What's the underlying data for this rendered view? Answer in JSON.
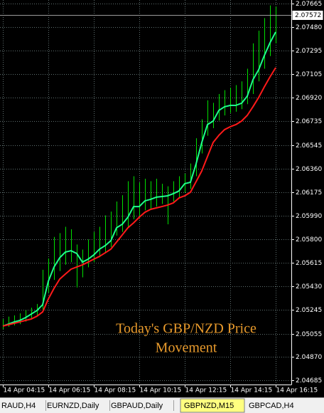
{
  "chart_data": {
    "type": "price",
    "categories": [
      "14 Apr 04:15",
      null,
      null,
      null,
      null,
      null,
      null,
      null,
      "14 Apr 06:15",
      null,
      null,
      null,
      null,
      null,
      null,
      null,
      "14 Apr 08:15",
      null,
      null,
      null,
      null,
      null,
      null,
      null,
      "14 Apr 10:15",
      null,
      null,
      null,
      null,
      null,
      null,
      null,
      "14 Apr 12:15",
      null,
      null,
      null,
      null,
      null,
      null,
      null,
      "14 Apr 14:15",
      null,
      null,
      null,
      null,
      null,
      null,
      null,
      "14 Apr 16:15"
    ],
    "bars": {
      "color": "#00e000",
      "high": [
        2.0517,
        2.0519,
        2.052,
        2.05215,
        2.0524,
        2.0526,
        2.0529,
        2.0556,
        2.0565,
        2.0582,
        2.0585,
        2.059,
        2.0588,
        2.0576,
        2.0572,
        2.058,
        2.0586,
        2.059,
        2.0599,
        2.0602,
        2.061,
        2.0615,
        2.0626,
        2.063,
        2.0625,
        2.0628,
        2.0626,
        2.0628,
        2.0624,
        2.0622,
        2.0626,
        2.063,
        2.0632,
        2.064,
        2.066,
        2.0675,
        2.069,
        2.0688,
        2.0695,
        2.0698,
        2.07,
        2.0702,
        2.0705,
        2.0715,
        2.0735,
        2.0745,
        2.0755,
        2.0765,
        2.0764
      ],
      "low": [
        2.0509,
        2.0511,
        2.0512,
        2.0513,
        2.0515,
        2.0517,
        2.052,
        2.0524,
        2.0538,
        2.0548,
        2.0555,
        2.056,
        2.0562,
        2.0542,
        2.055,
        2.0558,
        2.0562,
        2.0566,
        2.057,
        2.0574,
        2.0583,
        2.0586,
        2.059,
        2.0596,
        2.0598,
        2.0603,
        2.0604,
        2.0606,
        2.0608,
        2.0592,
        2.061,
        2.0613,
        2.0617,
        2.062,
        2.063,
        2.0648,
        2.0662,
        2.0668,
        2.0674,
        2.0678,
        2.068,
        2.0681,
        2.0683,
        2.0687,
        2.0695,
        2.0705,
        2.0715,
        2.0725,
        2.0735
      ]
    },
    "series": [
      {
        "color": "#1eff8c",
        "values": [
          2.05115,
          2.05131,
          2.05148,
          2.0516,
          2.05182,
          2.0521,
          2.05238,
          2.05284,
          2.05469,
          2.05582,
          2.05655,
          2.057,
          2.05711,
          2.05689,
          2.05621,
          2.05644,
          2.05678,
          2.05723,
          2.05751,
          2.0579,
          2.05892,
          2.0592,
          2.05976,
          2.0606,
          2.0606,
          2.06105,
          2.06117,
          2.06134,
          2.06139,
          2.06145,
          2.06162,
          2.06184,
          2.06241,
          2.06252,
          2.06398,
          2.06567,
          2.06708,
          2.06736,
          2.0682,
          2.06849,
          2.0686,
          2.0686,
          2.06877,
          2.06933,
          2.07063,
          2.07141,
          2.07254,
          2.07355,
          2.0744
        ]
      },
      {
        "color": "#ff1a1a",
        "values": [
          2.05115,
          2.05126,
          2.05137,
          2.05148,
          2.0516,
          2.05171,
          2.05193,
          2.05227,
          2.05329,
          2.05413,
          2.05486,
          2.05526,
          2.05565,
          2.05582,
          2.05599,
          2.05621,
          2.05644,
          2.05666,
          2.05694,
          2.05723,
          2.05779,
          2.05835,
          2.05892,
          2.05931,
          2.05976,
          2.06015,
          2.06038,
          2.06049,
          2.0606,
          2.06072,
          2.06089,
          2.06128,
          2.06145,
          2.06173,
          2.06257,
          2.06342,
          2.06455,
          2.06567,
          2.06623,
          2.06668,
          2.06691,
          2.06708,
          2.06736,
          2.06781,
          2.06849,
          2.06922,
          2.07006,
          2.07085,
          2.07158
        ]
      }
    ],
    "ylim": [
      2.04653,
      2.07693
    ],
    "yticks": [
      2.07665,
      {
        "value": 2.0748,
        "label": "2.07480"
      },
      2.07295,
      2.07105,
      {
        "value": 2.0692,
        "label": "2.06920"
      },
      2.06735,
      2.06545,
      {
        "value": 2.0636,
        "label": "2.06360"
      },
      2.06175,
      {
        "value": 2.0599,
        "label": "2.05990"
      },
      {
        "value": 2.058,
        "label": "2.05800"
      },
      2.05615,
      {
        "value": 2.0543,
        "label": "2.05430"
      },
      2.05245,
      2.05055,
      {
        "value": 2.0487,
        "label": "2.04870"
      },
      2.04685
    ],
    "current_price": 2.07572,
    "grid": true,
    "annotation": [
      "Today's GBP/NZD Price",
      "Movement"
    ]
  },
  "tabs": {
    "items": [
      "RAUD,H4",
      "EURNZD,Daily",
      "GBPAUD,Daily",
      "GBPNZD,M15",
      "GBPCAD,H4"
    ],
    "active": 3
  }
}
